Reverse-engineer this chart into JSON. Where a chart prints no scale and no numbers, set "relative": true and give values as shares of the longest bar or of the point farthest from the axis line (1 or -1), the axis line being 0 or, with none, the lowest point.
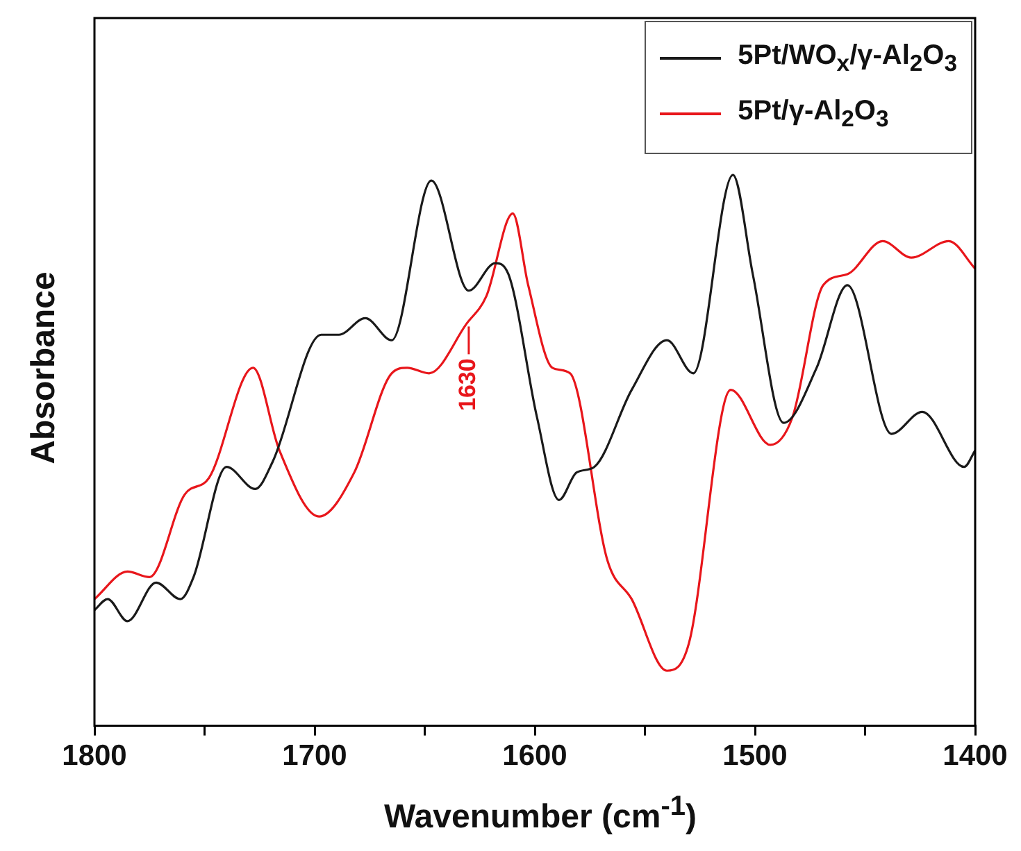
{
  "chart_data": {
    "type": "line",
    "xlabel": "Wavenumber (cm$^{-1}$)",
    "ylabel": "Absorbance",
    "relative": true,
    "xlim": [
      1800,
      1400
    ],
    "xticks": [
      1800,
      {
        "value": 1750,
        "label": null
      },
      1700,
      {
        "value": 1650,
        "label": null
      },
      1600,
      {
        "value": 1550,
        "label": null
      },
      1500,
      {
        "value": 1450,
        "label": null
      },
      1400
    ],
    "grid": false,
    "legend": "top right",
    "marker": "none",
    "line_style": "solid",
    "annotations": [
      {
        "text": "1630",
        "x": 1630,
        "y": 0.73
      }
    ],
    "series": [
      {
        "name": "5Pt/WO$_{x}$/γ-Al$_{2}$O$_{3}$",
        "color": "#1a1a1a",
        "x": [
          1800,
          1794,
          1785,
          1772,
          1761,
          1755,
          1740,
          1727,
          1719,
          1697,
          1689,
          1677,
          1665,
          1647,
          1630,
          1618,
          1612,
          1599,
          1589,
          1581,
          1573,
          1556,
          1540,
          1528,
          1510,
          1501,
          1487,
          1472,
          1458,
          1438,
          1424,
          1405,
          1400
        ],
        "values": [
          0.21,
          0.23,
          0.19,
          0.26,
          0.23,
          0.27,
          0.47,
          0.43,
          0.48,
          0.71,
          0.71,
          0.74,
          0.7,
          0.99,
          0.79,
          0.84,
          0.82,
          0.56,
          0.41,
          0.46,
          0.47,
          0.61,
          0.7,
          0.64,
          1.0,
          0.82,
          0.55,
          0.65,
          0.8,
          0.53,
          0.57,
          0.47,
          0.5
        ]
      },
      {
        "name": "5Pt/γ-Al$_{2}$O$_{3}$",
        "color": "#e8161b",
        "x": [
          1800,
          1785,
          1775,
          1759,
          1748,
          1728,
          1716,
          1698,
          1682,
          1665,
          1658,
          1648,
          1631,
          1622,
          1610,
          1603,
          1592,
          1584,
          1567,
          1556,
          1540,
          1530,
          1511,
          1493,
          1483,
          1469,
          1458,
          1442,
          1429,
          1412,
          1400
        ],
        "values": [
          0.23,
          0.28,
          0.27,
          0.42,
          0.45,
          0.65,
          0.5,
          0.38,
          0.46,
          0.64,
          0.65,
          0.64,
          0.73,
          0.78,
          0.93,
          0.8,
          0.65,
          0.64,
          0.3,
          0.23,
          0.1,
          0.15,
          0.61,
          0.51,
          0.56,
          0.8,
          0.82,
          0.88,
          0.85,
          0.88,
          0.83
        ]
      }
    ]
  }
}
